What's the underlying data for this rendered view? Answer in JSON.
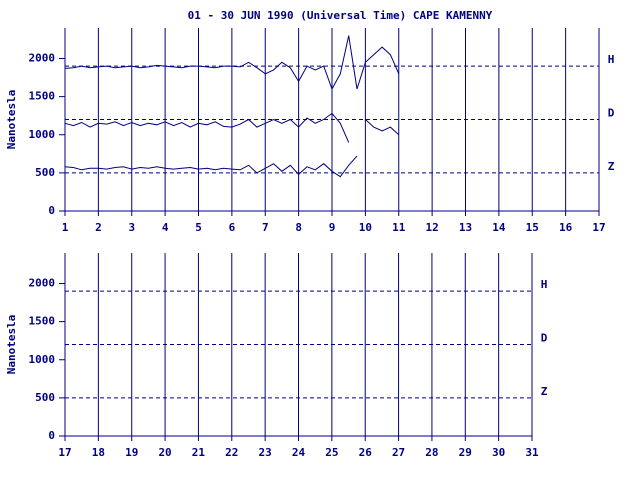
{
  "chart_data": [
    {
      "type": "line",
      "title": "01 - 30 JUN 1990 (Universal Time) CAPE KAMENNY",
      "ylabel": "Nanotesla",
      "xlim": [
        1,
        17
      ],
      "xticks": [
        1,
        2,
        3,
        4,
        5,
        6,
        7,
        8,
        9,
        10,
        11,
        12,
        13,
        14,
        15,
        16,
        17
      ],
      "ylim": [
        0,
        2400
      ],
      "yticks": [
        0,
        500,
        1000,
        1500,
        2000
      ],
      "grid": true,
      "reference_lines": [
        {
          "label": "H",
          "value": 1900
        },
        {
          "label": "D",
          "value": 1200
        },
        {
          "label": "Z",
          "value": 500
        }
      ],
      "x": [
        1,
        1.25,
        1.5,
        1.75,
        2,
        2.25,
        2.5,
        2.75,
        3,
        3.25,
        3.5,
        3.75,
        4,
        4.25,
        4.5,
        4.75,
        5,
        5.25,
        5.5,
        5.75,
        6,
        6.25,
        6.5,
        6.75,
        7,
        7.25,
        7.5,
        7.75,
        8,
        8.25,
        8.5,
        8.75,
        9,
        9.25,
        9.5,
        9.75,
        10,
        10.25,
        10.5,
        10.75,
        11
      ],
      "series": [
        {
          "color": "#000080",
          "values": [
            1870,
            1880,
            1900,
            1880,
            1890,
            1900,
            1880,
            1890,
            1900,
            1880,
            1890,
            1910,
            1900,
            1890,
            1880,
            1900,
            1900,
            1890,
            1880,
            1900,
            1900,
            1890,
            1950,
            1880,
            1800,
            1850,
            1950,
            1880,
            1700,
            1900,
            1850,
            1900,
            1600,
            1800,
            2300,
            1600,
            1950,
            2050,
            2150,
            2050,
            1800
          ]
        },
        {
          "color": "#000080",
          "values": [
            1150,
            1120,
            1160,
            1100,
            1150,
            1140,
            1170,
            1120,
            1160,
            1120,
            1150,
            1130,
            1170,
            1120,
            1160,
            1100,
            1150,
            1130,
            1170,
            1110,
            1100,
            1140,
            1200,
            1100,
            1150,
            1200,
            1150,
            1200,
            1100,
            1220,
            1150,
            1200,
            1280,
            1150,
            900,
            null,
            1200,
            1100,
            1050,
            1100,
            1000
          ]
        },
        {
          "color": "#000080",
          "values": [
            580,
            570,
            540,
            560,
            560,
            550,
            570,
            580,
            550,
            570,
            560,
            580,
            560,
            550,
            560,
            570,
            550,
            560,
            540,
            560,
            550,
            540,
            600,
            500,
            560,
            620,
            520,
            600,
            480,
            580,
            540,
            620,
            520,
            450,
            600,
            720,
            null,
            null,
            null,
            null,
            null
          ]
        }
      ]
    },
    {
      "type": "line",
      "ylabel": "Nanotesla",
      "xlim": [
        17,
        31
      ],
      "xticks": [
        17,
        18,
        19,
        20,
        21,
        22,
        23,
        24,
        25,
        26,
        27,
        28,
        29,
        30,
        31
      ],
      "ylim": [
        0,
        2400
      ],
      "yticks": [
        0,
        500,
        1000,
        1500,
        2000
      ],
      "grid": true,
      "reference_lines": [
        {
          "label": "H",
          "value": 1900
        },
        {
          "label": "D",
          "value": 1200
        },
        {
          "label": "Z",
          "value": 500
        }
      ],
      "x": [],
      "series": []
    }
  ]
}
